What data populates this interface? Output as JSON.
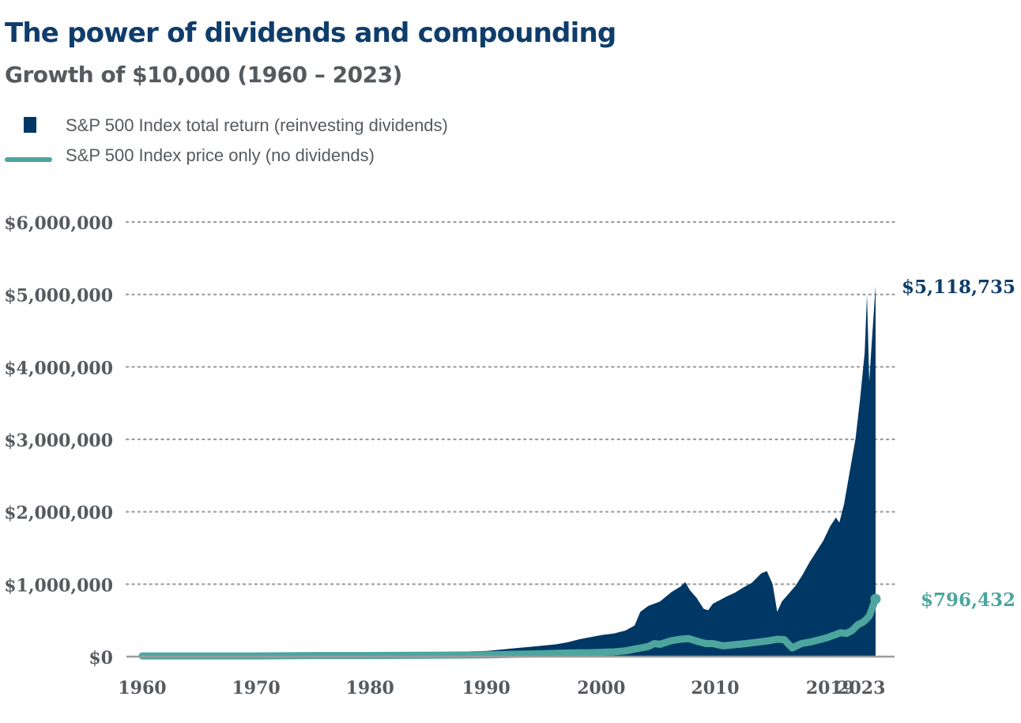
{
  "title": "The power of dividends and compounding",
  "subtitle": "Growth of $10,000 (1960 – 2023)",
  "legend": [
    {
      "label": "S&P 500 Index total return (reinvesting dividends)",
      "color": "#003865",
      "shape": "square"
    },
    {
      "label": "S&P 500 Index price only (no dividends)",
      "color": "#4da59e",
      "shape": "line"
    }
  ],
  "chart_data": {
    "type": "area",
    "title": "The power of dividends and compounding",
    "subtitle": "Growth of $10,000 (1960 – 2023)",
    "xlabel": "",
    "ylabel": "",
    "ylim": [
      0,
      6000000
    ],
    "xlim": [
      1960,
      2023.75
    ],
    "y_ticks": [
      0,
      1000000,
      2000000,
      3000000,
      4000000,
      5000000,
      6000000
    ],
    "y_tick_labels": [
      "$0",
      "$1,000,000",
      "$2,000,000",
      "$3,000,000",
      "$4,000,000",
      "$5,000,000",
      "$6,000,000"
    ],
    "x_ticks": [
      {
        "label": "1960",
        "x": 1960
      },
      {
        "label": "1970",
        "x": 1969.9
      },
      {
        "label": "1980",
        "x": 1979.8
      },
      {
        "label": "1990",
        "x": 1989.9
      },
      {
        "label": "2000",
        "x": 1999.9
      },
      {
        "label": "2010",
        "x": 2009.8
      },
      {
        "label": "2019",
        "x": 2019.8
      },
      {
        "label": "2023",
        "x": 2022.5
      }
    ],
    "grid": "horizontal-dotted",
    "legend_position": "top-left",
    "series": [
      {
        "name": "S&P 500 Index total return (reinvesting dividends)",
        "style": "area",
        "color": "#003865",
        "x": [
          1960,
          1965,
          1970,
          1975,
          1980,
          1985,
          1988,
          1990,
          1992,
          1994,
          1996,
          1997,
          1998,
          1999,
          2000,
          2001,
          2002,
          2002.8,
          2003.3,
          2004,
          2005,
          2006,
          2006.8,
          2007.2,
          2007.6,
          2008.2,
          2008.8,
          2009.2,
          2009.6,
          2010.2,
          2010.8,
          2011.5,
          2012.2,
          2013,
          2013.8,
          2014.3,
          2014.8,
          2015.2,
          2015.6,
          2016.2,
          2016.8,
          2017.4,
          2018,
          2018.6,
          2019.2,
          2019.8,
          2020.3,
          2020.6,
          2021,
          2021.5,
          2022,
          2022.4,
          2022.8,
          2023,
          2023.2,
          2023.4,
          2023.75
        ],
        "values": [
          10000,
          20000,
          30000,
          40000,
          50000,
          60000,
          70000,
          80000,
          110000,
          140000,
          170000,
          200000,
          240000,
          270000,
          300000,
          320000,
          360000,
          430000,
          620000,
          700000,
          760000,
          890000,
          970000,
          1030000,
          920000,
          810000,
          660000,
          640000,
          730000,
          780000,
          830000,
          880000,
          950000,
          1020000,
          1150000,
          1180000,
          1000000,
          620000,
          760000,
          870000,
          980000,
          1130000,
          1300000,
          1450000,
          1600000,
          1800000,
          1920000,
          1850000,
          2100000,
          2550000,
          3000000,
          3550000,
          4200000,
          5000000,
          3800000,
          4300000,
          5118735
        ]
      },
      {
        "name": "S&P 500 Index price only (no dividends)",
        "style": "line",
        "color": "#4da59e",
        "x": [
          1960,
          1965,
          1970,
          1975,
          1980,
          1985,
          1990,
          1995,
          1997,
          1999,
          2000,
          2001,
          2002,
          2003,
          2004,
          2004.5,
          2005,
          2006,
          2006.8,
          2007.5,
          2008.3,
          2009,
          2009.6,
          2010.5,
          2011.5,
          2012.5,
          2013.5,
          2014.5,
          2015.2,
          2015.8,
          2016.5,
          2017.3,
          2018,
          2018.8,
          2019.5,
          2020.2,
          2020.7,
          2021.2,
          2021.7,
          2022.2,
          2022.6,
          2022.9,
          2023.2,
          2023.5,
          2023.75
        ],
        "values": [
          10000,
          10000,
          10000,
          15000,
          15000,
          20000,
          25000,
          40000,
          50000,
          55000,
          60000,
          65000,
          80000,
          110000,
          140000,
          180000,
          170000,
          220000,
          240000,
          250000,
          210000,
          180000,
          180000,
          150000,
          165000,
          180000,
          200000,
          220000,
          240000,
          235000,
          120000,
          180000,
          200000,
          230000,
          260000,
          300000,
          330000,
          320000,
          360000,
          440000,
          470000,
          510000,
          560000,
          690000,
          796432
        ]
      }
    ],
    "annotations": [
      {
        "text": "$5,118,735",
        "series": 0,
        "color": "#0f3d6b"
      },
      {
        "text": "$796,432",
        "series": 1,
        "color": "#4da59e"
      }
    ]
  }
}
